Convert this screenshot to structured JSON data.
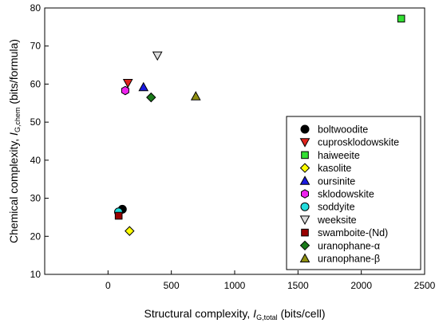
{
  "chart_data": {
    "type": "scatter",
    "xlabel": "Structural complexity, ",
    "xlabel_var": "I",
    "xlabel_sub": "G,total",
    "xlabel_unit": " (bits/cell)",
    "ylabel": "Chemical complexity, ",
    "ylabel_var": "I",
    "ylabel_sub": "G,chem",
    "ylabel_unit": " (bits/formula)",
    "xlim": [
      -500,
      2500
    ],
    "ylim": [
      10,
      80
    ],
    "xticks": [
      0,
      500,
      1000,
      1500,
      2000,
      2500
    ],
    "yticks": [
      10,
      20,
      30,
      40,
      50,
      60,
      70,
      80
    ],
    "grid": false,
    "legend_position": "bottom-right",
    "series": [
      {
        "name": "boltwoodite",
        "marker": "circle",
        "color": "#000000",
        "x": [
          113
        ],
        "y": [
          27.1
        ]
      },
      {
        "name": "cuprosklodowskite",
        "marker": "triangle-down",
        "color": "#e0231c",
        "x": [
          157
        ],
        "y": [
          60.3
        ]
      },
      {
        "name": "haiweeite",
        "marker": "square",
        "color": "#33e033",
        "x": [
          2315
        ],
        "y": [
          77.2
        ]
      },
      {
        "name": "kasolite",
        "marker": "diamond",
        "color": "#ffff00",
        "x": [
          170
        ],
        "y": [
          21.4
        ]
      },
      {
        "name": "oursinite",
        "marker": "triangle-up",
        "color": "#1a1ae0",
        "x": [
          280
        ],
        "y": [
          59.2
        ]
      },
      {
        "name": "sklodowskite",
        "marker": "hexagon",
        "color": "#ee22ee",
        "x": [
          136
        ],
        "y": [
          58.3
        ]
      },
      {
        "name": "soddyite",
        "marker": "circle",
        "color": "#22dddd",
        "x": [
          83
        ],
        "y": [
          26.4
        ]
      },
      {
        "name": "weeksite",
        "marker": "triangle-down",
        "color": "#dddddd",
        "x": [
          390
        ],
        "y": [
          67.5
        ]
      },
      {
        "name": "swamboite-(Nd)",
        "marker": "square",
        "color": "#990000",
        "x": [
          84
        ],
        "y": [
          25.4
        ]
      },
      {
        "name": "uranophane-α",
        "marker": "diamond",
        "color": "#1a7a1a",
        "x": [
          340
        ],
        "y": [
          56.5
        ]
      },
      {
        "name": "uranophane-β",
        "marker": "triangle-up",
        "color": "#8f8f10",
        "x": [
          693
        ],
        "y": [
          56.8
        ]
      }
    ]
  }
}
